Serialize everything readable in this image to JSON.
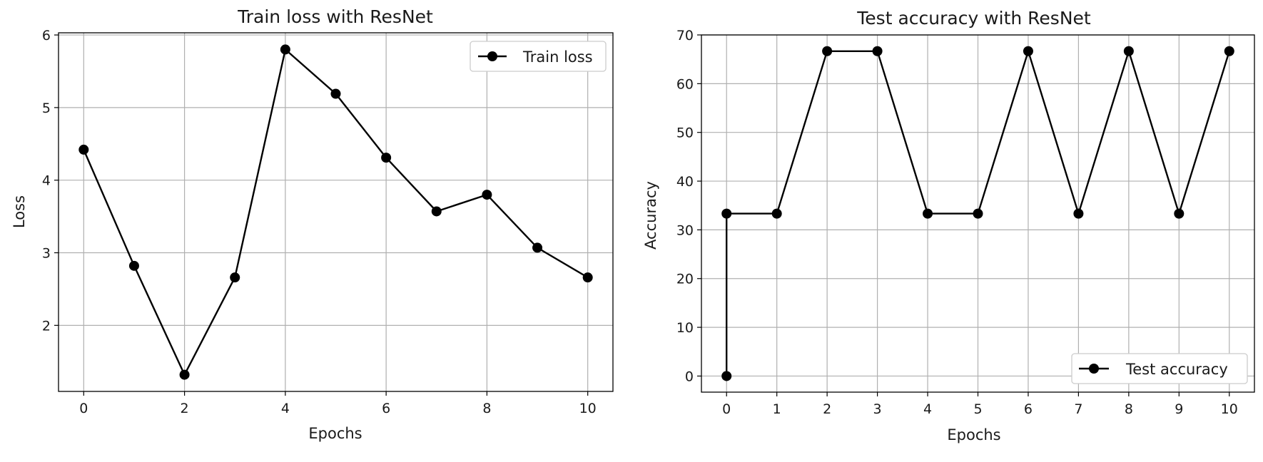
{
  "chart_data": [
    {
      "type": "line",
      "title": "Train loss with ResNet",
      "xlabel": "Epochs",
      "ylabel": "Loss",
      "x": [
        0,
        1,
        2,
        3,
        4,
        5,
        6,
        7,
        8,
        9,
        10
      ],
      "series": [
        {
          "name": "Train loss",
          "color": "#000000",
          "marker": "circle",
          "values": [
            4.42,
            2.82,
            1.32,
            2.66,
            5.8,
            5.19,
            4.31,
            3.57,
            3.8,
            3.07,
            2.66
          ]
        }
      ],
      "xlim": [
        -0.5,
        10.5
      ],
      "ylim": [
        1.09,
        6.03
      ],
      "xticks": [
        0,
        2,
        4,
        6,
        8,
        10
      ],
      "xtick_labels": [
        "0",
        "2",
        "4",
        "6",
        "8",
        "10"
      ],
      "yticks": [
        2,
        3,
        4,
        5,
        6
      ],
      "ytick_labels": [
        "2",
        "3",
        "4",
        "5",
        "6"
      ],
      "grid": true,
      "legend_position": "top-right"
    },
    {
      "type": "line",
      "title": "Test accuracy with ResNet",
      "xlabel": "Epochs",
      "ylabel": "Accuracy",
      "x": [
        0,
        0,
        1,
        2,
        3,
        4,
        5,
        6,
        7,
        8,
        9,
        10
      ],
      "series": [
        {
          "name": "Test accuracy",
          "color": "#000000",
          "marker": "circle",
          "values": [
            0,
            33.33,
            33.33,
            66.67,
            66.67,
            33.33,
            33.33,
            66.67,
            33.33,
            66.67,
            33.33,
            66.67
          ]
        }
      ],
      "xlim": [
        -0.5,
        10.5
      ],
      "ylim": [
        -3.3,
        70
      ],
      "xticks": [
        0,
        1,
        2,
        3,
        4,
        5,
        6,
        7,
        8,
        9,
        10
      ],
      "xtick_labels": [
        "0",
        "1",
        "2",
        "3",
        "4",
        "5",
        "6",
        "7",
        "8",
        "9",
        "10"
      ],
      "yticks": [
        0,
        10,
        20,
        30,
        40,
        50,
        60,
        70
      ],
      "ytick_labels": [
        "0",
        "10",
        "20",
        "30",
        "40",
        "50",
        "60",
        "70"
      ],
      "grid": true,
      "legend_position": "lower-right"
    }
  ]
}
